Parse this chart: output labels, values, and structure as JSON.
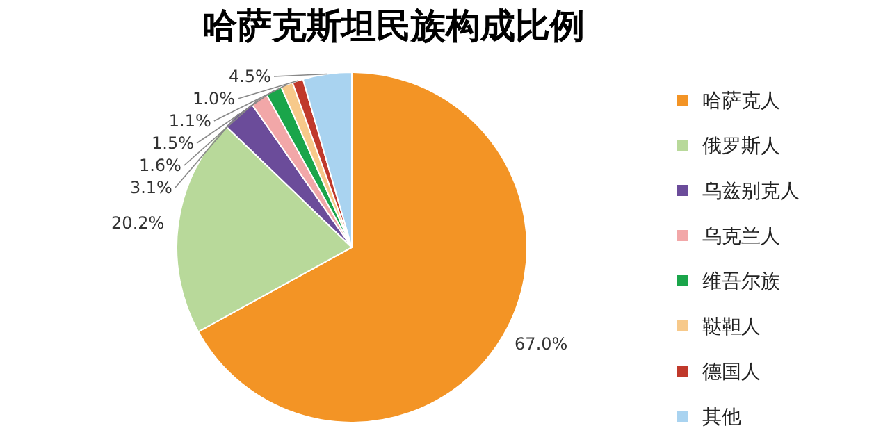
{
  "chart_data": {
    "type": "pie",
    "title": "哈萨克斯坦民族构成比例",
    "categories": [
      "哈萨克人",
      "俄罗斯人",
      "乌兹别克人",
      "乌克兰人",
      "维吾尔族",
      "鞑靼人",
      "德国人",
      "其他"
    ],
    "values": [
      67.0,
      20.2,
      3.1,
      1.6,
      1.5,
      1.1,
      1.0,
      4.5
    ],
    "colors": [
      "#f39425",
      "#b8d99a",
      "#6b4c9a",
      "#f2a7a8",
      "#1aa54a",
      "#f7c98a",
      "#c0392b",
      "#a9d3f0"
    ],
    "value_labels": [
      "67.0%",
      "20.2%",
      "3.1%",
      "1.6%",
      "1.5%",
      "1.1%",
      "1.0%",
      "4.5%"
    ],
    "legend": "right"
  }
}
